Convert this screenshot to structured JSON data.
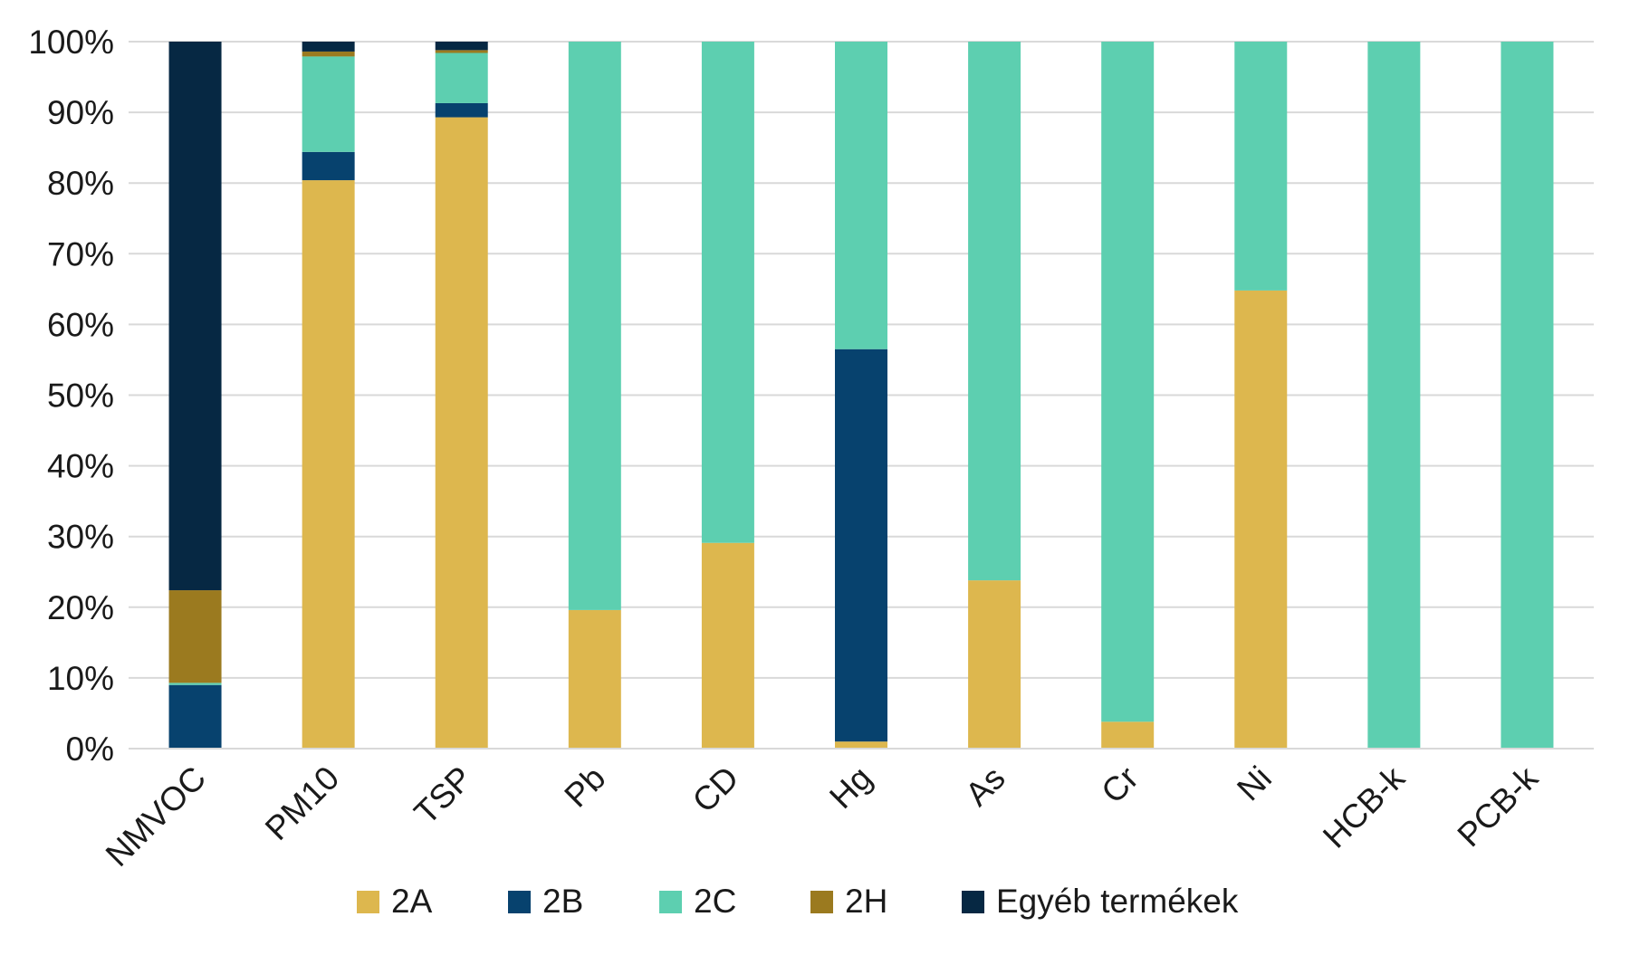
{
  "chart_data": {
    "type": "bar",
    "stacked": true,
    "percent": true,
    "title": "",
    "xlabel": "",
    "ylabel": "",
    "ylim": [
      0,
      100
    ],
    "yticks": [
      "0%",
      "10%",
      "20%",
      "30%",
      "40%",
      "50%",
      "60%",
      "70%",
      "80%",
      "90%",
      "100%"
    ],
    "grid": true,
    "legend_position": "bottom",
    "categories": [
      "NMVOC",
      "PM10",
      "TSP",
      "Pb",
      "CD",
      "Hg",
      "As",
      "Cr",
      "Ni",
      "HCB-k",
      "PCB-k"
    ],
    "series": [
      {
        "name": "2A",
        "color": "#DDB74E",
        "values": [
          0,
          80.4,
          89.3,
          19.6,
          29.1,
          1.0,
          23.8,
          3.8,
          64.8,
          0,
          0
        ]
      },
      {
        "name": "2B",
        "color": "#07426E",
        "values": [
          9.0,
          4.0,
          2.0,
          0,
          0,
          55.5,
          0,
          0,
          0,
          0,
          0
        ]
      },
      {
        "name": "2C",
        "color": "#5DCFB0",
        "values": [
          0.3,
          13.5,
          7.1,
          80.4,
          70.9,
          43.5,
          76.2,
          96.2,
          35.2,
          100,
          100
        ]
      },
      {
        "name": "2H",
        "color": "#9B7A1F",
        "values": [
          13.1,
          0.7,
          0.4,
          0,
          0,
          0,
          0,
          0,
          0,
          0,
          0
        ]
      },
      {
        "name": "Egyéb termékek",
        "color": "#062843",
        "values": [
          77.6,
          1.4,
          1.2,
          0,
          0,
          0,
          0,
          0,
          0,
          0,
          0
        ]
      }
    ]
  }
}
